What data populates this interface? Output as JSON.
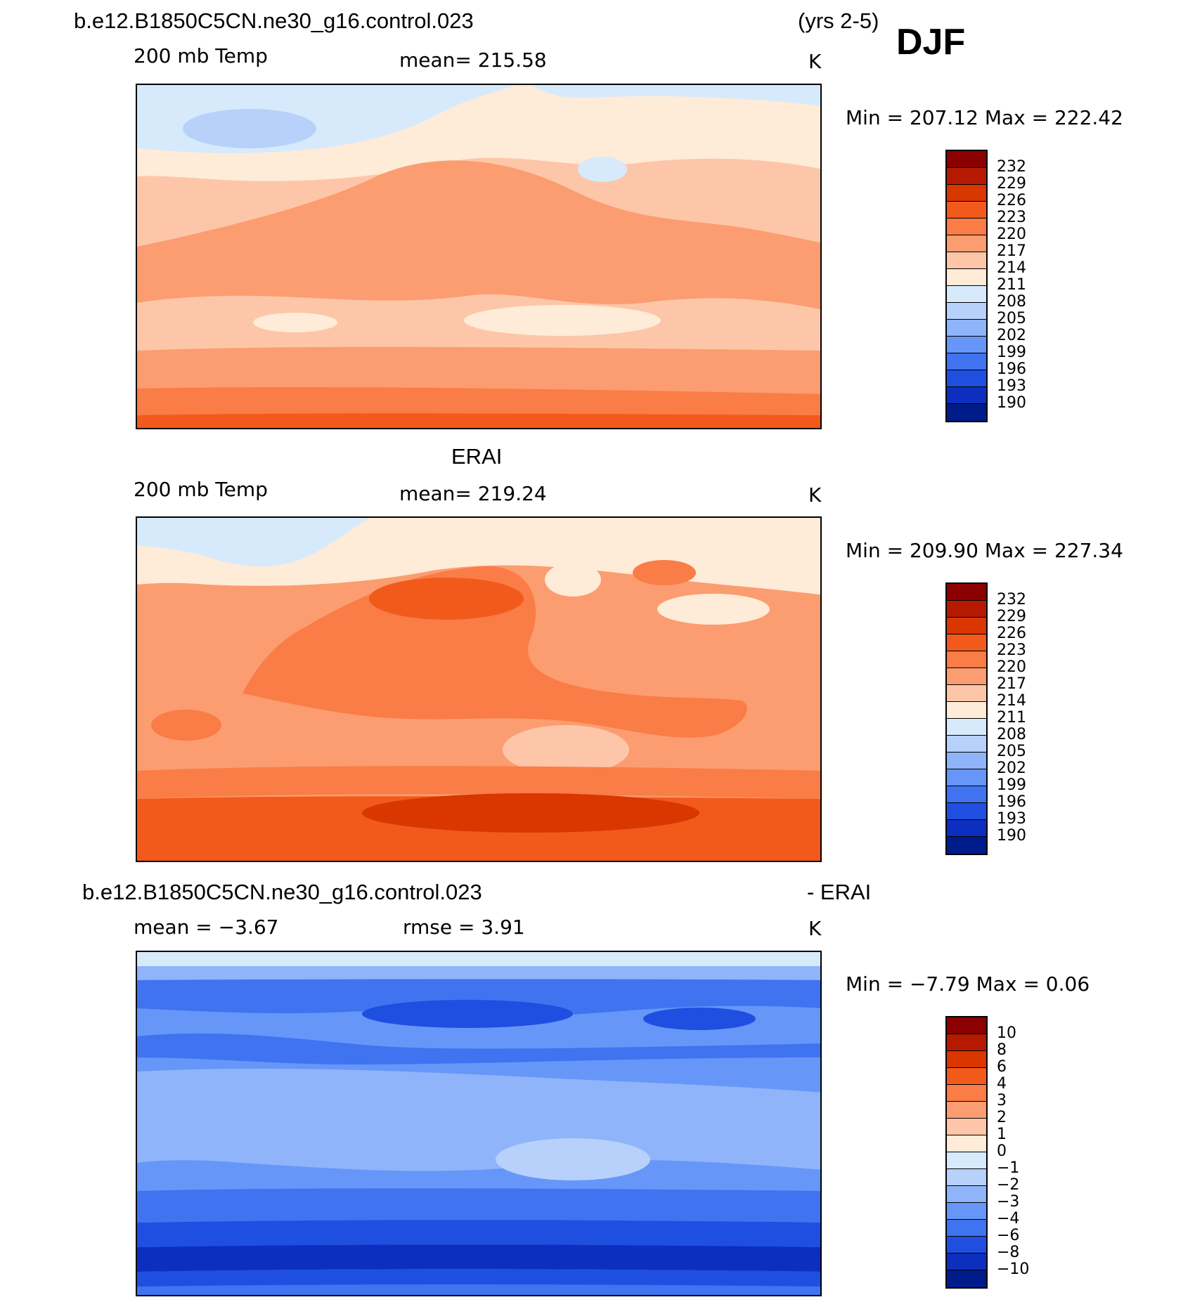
{
  "header": {
    "case_name": "b.e12.B1850C5CN.ne30_g16.control.023",
    "years": "(yrs 2-5)",
    "season": "DJF"
  },
  "panels": [
    {
      "title": "",
      "variable": "200 mb Temp",
      "mean": "mean= 215.58",
      "units": "K",
      "minmax": "Min = 207.12 Max = 222.42",
      "colorbar": {
        "labels": [
          "232",
          "229",
          "226",
          "223",
          "220",
          "217",
          "214",
          "211",
          "208",
          "205",
          "202",
          "199",
          "196",
          "193",
          "190"
        ],
        "colors": [
          "#8b0000",
          "#b51a00",
          "#d93600",
          "#f25a1c",
          "#fa7c46",
          "#fb9d70",
          "#fdc6a8",
          "#feebd8",
          "#d6eafc",
          "#b7d1fb",
          "#8fb4fa",
          "#6696f8",
          "#3f73f0",
          "#1f4fe0",
          "#0c2fbf",
          "#001c8a"
        ]
      },
      "map_desc": "model"
    },
    {
      "title": "ERAI",
      "variable": "200 mb Temp",
      "mean": "mean= 219.24",
      "units": "K",
      "minmax": "Min = 209.90 Max = 227.34",
      "colorbar": {
        "labels": [
          "232",
          "229",
          "226",
          "223",
          "220",
          "217",
          "214",
          "211",
          "208",
          "205",
          "202",
          "199",
          "196",
          "193",
          "190"
        ],
        "colors": [
          "#8b0000",
          "#b51a00",
          "#d93600",
          "#f25a1c",
          "#fa7c46",
          "#fb9d70",
          "#fdc6a8",
          "#feebd8",
          "#d6eafc",
          "#b7d1fb",
          "#8fb4fa",
          "#6696f8",
          "#3f73f0",
          "#1f4fe0",
          "#0c2fbf",
          "#001c8a"
        ]
      },
      "map_desc": "obs"
    },
    {
      "title_left": "b.e12.B1850C5CN.ne30_g16.control.023",
      "title_right": "- ERAI",
      "mean": "mean = −3.67",
      "rmse": "rmse = 3.91",
      "units": "K",
      "minmax": "Min = −7.79 Max = 0.06",
      "colorbar": {
        "labels": [
          "10",
          "8",
          "6",
          "4",
          "3",
          "2",
          "1",
          "0",
          "−1",
          "−2",
          "−3",
          "−4",
          "−6",
          "−8",
          "−10"
        ],
        "colors": [
          "#8b0000",
          "#b51a00",
          "#d93600",
          "#f25a1c",
          "#fa7c46",
          "#fb9d70",
          "#fdc6a8",
          "#feebd8",
          "#d6eafc",
          "#b7d1fb",
          "#8fb4fa",
          "#6696f8",
          "#3f73f0",
          "#1f4fe0",
          "#0c2fbf",
          "#001c8a"
        ]
      },
      "map_desc": "diff"
    }
  ]
}
